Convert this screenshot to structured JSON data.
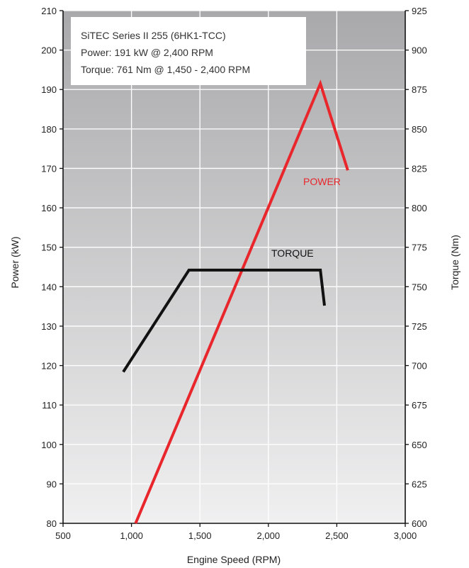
{
  "info_box": {
    "line1": "SiTEC Series II 255 (6HK1-TCC)",
    "line2": "Power: 191 kW @ 2,400 RPM",
    "line3": "Torque: 761 Nm @ 1,450 - 2,400 RPM"
  },
  "colors": {
    "power": "#e8262b",
    "torque": "#111111",
    "background_top": "#a9a9ab",
    "background_bottom": "#f0f0f1"
  },
  "chart_data": {
    "type": "line",
    "xlabel": "Engine Speed (RPM)",
    "ylabel_left": "Power (kW)",
    "ylabel_right": "Torque (Nm)",
    "xlim": [
      500,
      3000
    ],
    "ylim_left": [
      80,
      210
    ],
    "ylim_right": [
      600,
      925
    ],
    "x_ticks": [
      500,
      1000,
      1500,
      2000,
      2500,
      3000
    ],
    "x_tick_labels": [
      "500",
      "1,000",
      "1,500",
      "2,000",
      "2,500",
      "3,000"
    ],
    "y_left_ticks": [
      80,
      90,
      100,
      110,
      120,
      130,
      140,
      150,
      160,
      170,
      180,
      190,
      200,
      210
    ],
    "y_right_ticks": [
      600,
      625,
      650,
      675,
      700,
      725,
      750,
      775,
      800,
      825,
      850,
      875,
      900,
      925
    ],
    "grid": true,
    "series": [
      {
        "name": "POWER",
        "axis": "left",
        "x": [
          1030,
          2380,
          2580
        ],
        "y": [
          80,
          191.5,
          169.5
        ]
      },
      {
        "name": "TORQUE",
        "axis": "right",
        "x": [
          940,
          1420,
          2380,
          2410
        ],
        "y": [
          696,
          760.5,
          760.5,
          738
        ]
      }
    ]
  }
}
